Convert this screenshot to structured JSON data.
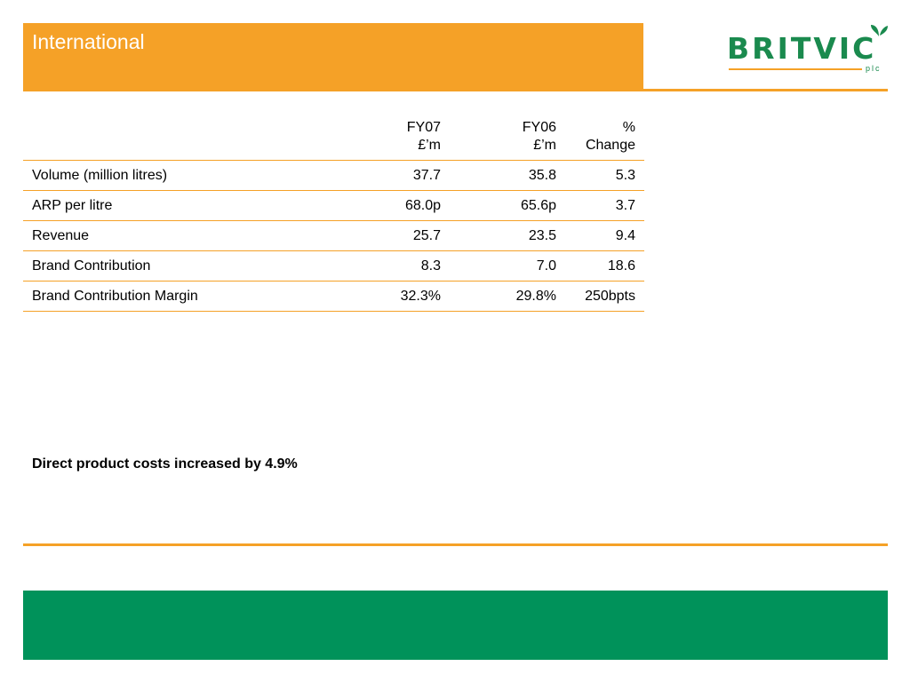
{
  "header": {
    "title": "International"
  },
  "logo": {
    "word": "BRITVIC",
    "suffix": "plc",
    "colors": {
      "green": "#1a8a4e",
      "orange": "#f5a127"
    }
  },
  "table": {
    "columns": [
      {
        "line1": "",
        "line2": ""
      },
      {
        "line1": "FY07",
        "line2": "£’m"
      },
      {
        "line1": "FY06",
        "line2": "£’m"
      },
      {
        "line1": "% Change",
        "line2": ""
      }
    ],
    "rows": [
      {
        "label": "Volume (million litres)",
        "fy07": "37.7",
        "fy06": "35.8",
        "change": "5.3"
      },
      {
        "label": "ARP per litre",
        "fy07": "68.0p",
        "fy06": "65.6p",
        "change": "3.7"
      },
      {
        "label": "Revenue",
        "fy07": "25.7",
        "fy06": "23.5",
        "change": "9.4"
      },
      {
        "label": "Brand Contribution",
        "fy07": "8.3",
        "fy06": "7.0",
        "change": "18.6"
      },
      {
        "label": "Brand Contribution Margin",
        "fy07": "32.3%",
        "fy06": "29.8%",
        "change": "250bpts"
      }
    ]
  },
  "note": "Direct product costs increased by 4.9%",
  "colors": {
    "accent_orange": "#f5a127",
    "footer_green": "#00925a"
  }
}
